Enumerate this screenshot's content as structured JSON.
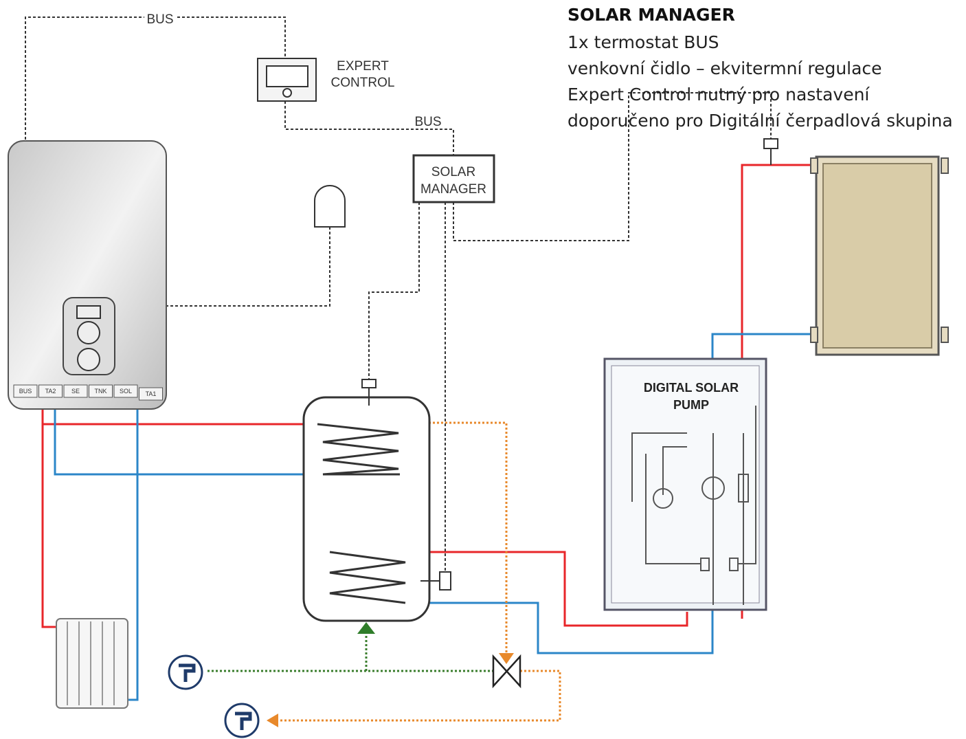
{
  "header": {
    "title": "SOLAR MANAGER",
    "lines": [
      "1x termostat BUS",
      "venkovní čidlo – ekvitermní regulace",
      "Expert Control nutný pro nastavení",
      "doporučeno pro Digitální čerpadlová skupina"
    ]
  },
  "labels": {
    "bus_top": "BUS",
    "bus_mid": "BUS",
    "expert_control": [
      "EXPERT",
      "CONTROL"
    ],
    "solar_manager_box": [
      "SOLAR",
      "MANAGER"
    ],
    "pump": [
      "DIGITAL SOLAR",
      "PUMP"
    ]
  },
  "boiler": {
    "terminals": [
      "BUS",
      "TA2",
      "SE",
      "TNK",
      "SOL",
      "TA1"
    ]
  }
}
